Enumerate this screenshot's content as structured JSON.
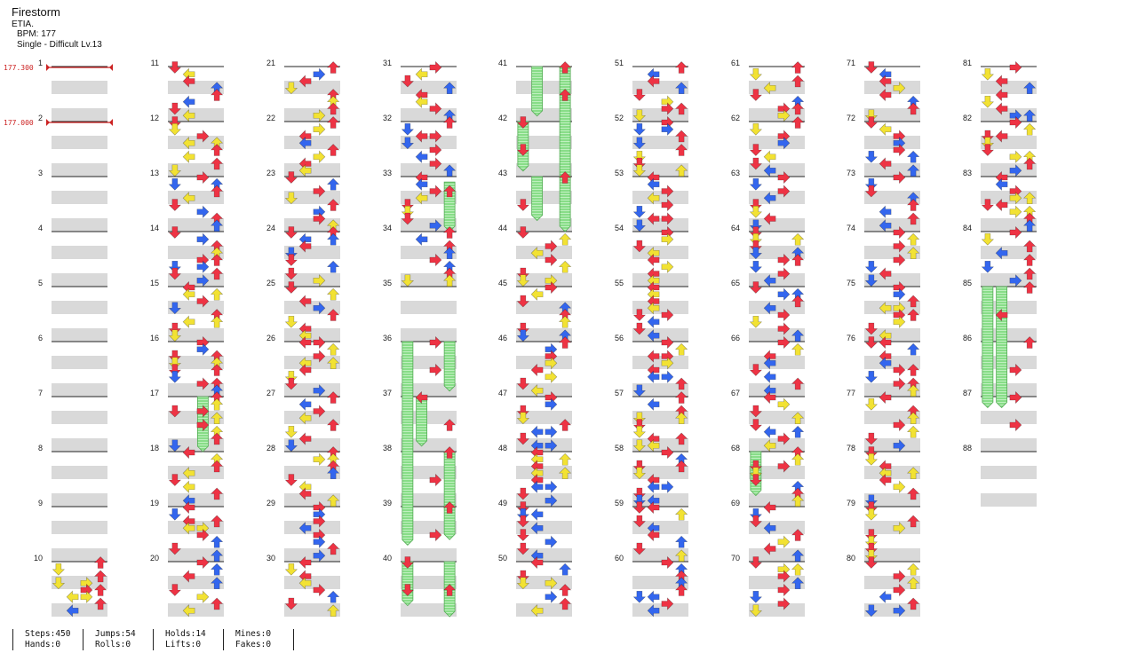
{
  "song": {
    "title": "Firestorm",
    "artist": "ETIA.",
    "bpm_label": "BPM: 177",
    "difficulty_label": "Single - Difficult Lv.13"
  },
  "bpm_changes": [
    {
      "measure": 1,
      "label": "177.300"
    },
    {
      "measure": 2,
      "label": "177.000"
    }
  ],
  "measures": {
    "first": 1,
    "last": 88,
    "per_column": 10
  },
  "colors": {
    "red_arrow": "#ee3344",
    "blue_arrow": "#3366ee",
    "yellow_arrow": "#f2e233",
    "hold": "#88dd88",
    "lane_band": "#d9d9d9",
    "bpm_marker": "#cc2222"
  },
  "stats": {
    "steps": "Steps:450",
    "hands": "Hands:0",
    "jumps": "Jumps:54",
    "rolls": "Rolls:0",
    "holds": "Holds:14",
    "lifts": "Lifts:0",
    "mines": "Mines:0",
    "fakes": "Fakes:0"
  }
}
